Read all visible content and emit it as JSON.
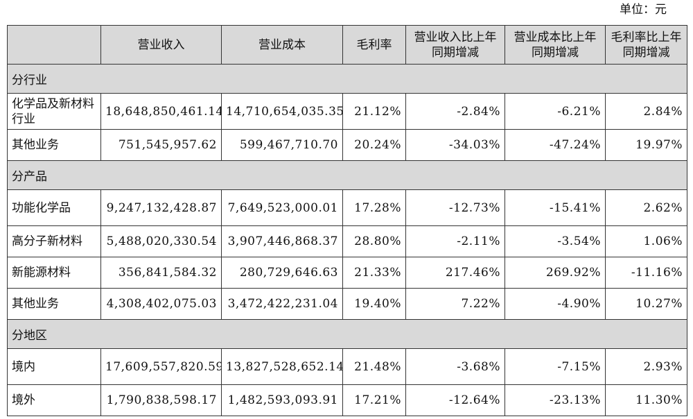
{
  "unit_label": "单位：元",
  "columns": [
    "",
    "营业收入",
    "营业成本",
    "毛利率",
    "营业收入比上年同期增减",
    "营业成本比上年同期增减",
    "毛利率比上年同期增减"
  ],
  "sections": [
    {
      "title": "分行业",
      "rows": [
        {
          "label": "化学品及新材料行业",
          "revenue": "18,648,850,461.14",
          "cost": "14,710,654,035.35",
          "gross_margin": "21.12%",
          "revenue_yoy": "-2.84%",
          "cost_yoy": "-6.21%",
          "margin_yoy": "2.84%"
        },
        {
          "label": "其他业务",
          "revenue": "751,545,957.62",
          "cost": "599,467,710.70",
          "gross_margin": "20.24%",
          "revenue_yoy": "-34.03%",
          "cost_yoy": "-47.24%",
          "margin_yoy": "19.97%"
        }
      ]
    },
    {
      "title": "分产品",
      "rows": [
        {
          "label": "功能化学品",
          "revenue": "9,247,132,428.87",
          "cost": "7,649,523,000.01",
          "gross_margin": "17.28%",
          "revenue_yoy": "-12.73%",
          "cost_yoy": "-15.41%",
          "margin_yoy": "2.62%"
        },
        {
          "label": "高分子新材料",
          "revenue": "5,488,020,330.54",
          "cost": "3,907,446,868.37",
          "gross_margin": "28.80%",
          "revenue_yoy": "-2.11%",
          "cost_yoy": "-3.54%",
          "margin_yoy": "1.06%"
        },
        {
          "label": "新能源材料",
          "revenue": "356,841,584.32",
          "cost": "280,729,646.63",
          "gross_margin": "21.33%",
          "revenue_yoy": "217.46%",
          "cost_yoy": "269.92%",
          "margin_yoy": "-11.16%"
        },
        {
          "label": "其他业务",
          "revenue": "4,308,402,075.03",
          "cost": "3,472,422,231.04",
          "gross_margin": "19.40%",
          "revenue_yoy": "7.22%",
          "cost_yoy": "-4.90%",
          "margin_yoy": "10.27%"
        }
      ]
    },
    {
      "title": "分地区",
      "rows": [
        {
          "label": "境内",
          "revenue": "17,609,557,820.59",
          "cost": "13,827,528,652.14",
          "gross_margin": "21.48%",
          "revenue_yoy": "-3.68%",
          "cost_yoy": "-7.15%",
          "margin_yoy": "2.93%"
        },
        {
          "label": "境外",
          "revenue": "1,790,838,598.17",
          "cost": "1,482,593,093.91",
          "gross_margin": "17.21%",
          "revenue_yoy": "-12.64%",
          "cost_yoy": "-23.13%",
          "margin_yoy": "11.30%"
        }
      ]
    }
  ]
}
